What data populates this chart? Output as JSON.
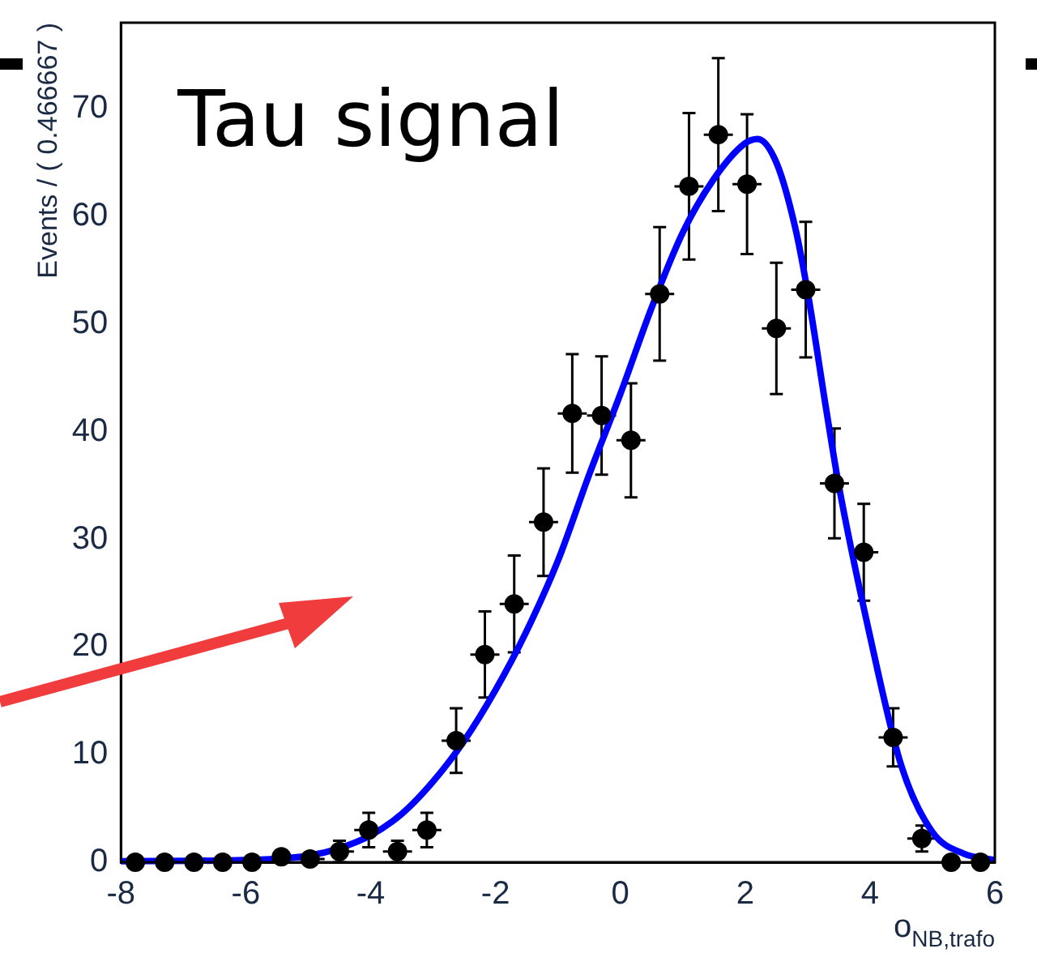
{
  "chart_data": {
    "type": "scatter",
    "annotations": [
      "Tau signal"
    ],
    "xlabel": "o$_{NB,trafo}$",
    "ylabel": "Events / ( 0.466667 )",
    "xlim": [
      -8,
      6
    ],
    "xticks": [
      -8,
      -6,
      -4,
      -2,
      0,
      2,
      4,
      6
    ],
    "ylim": [
      0,
      78
    ],
    "yticks": [
      0,
      10,
      20,
      30,
      40,
      50,
      60,
      70
    ],
    "grid": false,
    "legend": false,
    "series": [
      {
        "type": "scatter",
        "color": "#000000",
        "marker": "circle",
        "x": [
          -7.77,
          -7.3,
          -6.83,
          -6.37,
          -5.9,
          -5.43,
          -4.97,
          -4.5,
          -4.03,
          -3.57,
          -3.1,
          -2.63,
          -2.17,
          -1.7,
          -1.23,
          -0.77,
          -0.3,
          0.17,
          0.63,
          1.1,
          1.57,
          2.03,
          2.5,
          2.97,
          3.43,
          3.9,
          4.37,
          4.83,
          5.3,
          5.77
        ],
        "values": [
          0,
          0,
          0,
          0,
          0,
          0.5,
          0.3,
          1,
          3,
          1,
          3,
          11.3,
          19.3,
          24,
          31.6,
          41.7,
          41.5,
          39.2,
          52.8,
          62.8,
          67.6,
          63,
          49.6,
          53.2,
          35.2,
          28.8,
          11.6,
          2.2,
          0,
          0
        ],
        "errors": [
          null,
          null,
          null,
          null,
          null,
          null,
          null,
          1,
          1.6,
          1,
          1.6,
          3,
          4,
          4.5,
          5,
          5.5,
          5.5,
          5.3,
          6.2,
          6.8,
          7.1,
          6.5,
          6.1,
          6.3,
          5.1,
          4.5,
          2.7,
          1.2,
          null,
          null
        ],
        "xerrors": [
          0.233,
          0.233,
          0.233,
          0.233,
          0.233,
          null,
          0.233,
          0.233,
          0.233,
          0.233,
          0.233,
          0.233,
          0.233,
          0.233,
          0.233,
          0.233,
          0.233,
          0.233,
          0.233,
          0.233,
          0.233,
          0.233,
          0.233,
          0.233,
          0.233,
          0.233,
          0.233,
          0.233,
          null,
          null
        ]
      },
      {
        "type": "line",
        "color": "#0000ff",
        "marker": "none",
        "line_style": "solid",
        "x": [
          -8,
          -6,
          -5,
          -4.5,
          -4,
          -3.5,
          -3,
          -2.5,
          -2,
          -1.5,
          -1,
          -0.5,
          0,
          0.5,
          1,
          1.5,
          2,
          2.2,
          2.5,
          2.8,
          3,
          3.3,
          3.5,
          4,
          4.5,
          5,
          5.5,
          6
        ],
        "values": [
          0.1,
          0.2,
          0.6,
          1.3,
          2.5,
          4.5,
          7.5,
          11.3,
          16,
          21.5,
          28,
          36,
          43.5,
          51.5,
          58.5,
          63.5,
          66.8,
          67.2,
          65,
          59,
          53,
          42,
          35,
          21,
          9,
          2.8,
          0.8,
          0.2
        ]
      }
    ]
  }
}
